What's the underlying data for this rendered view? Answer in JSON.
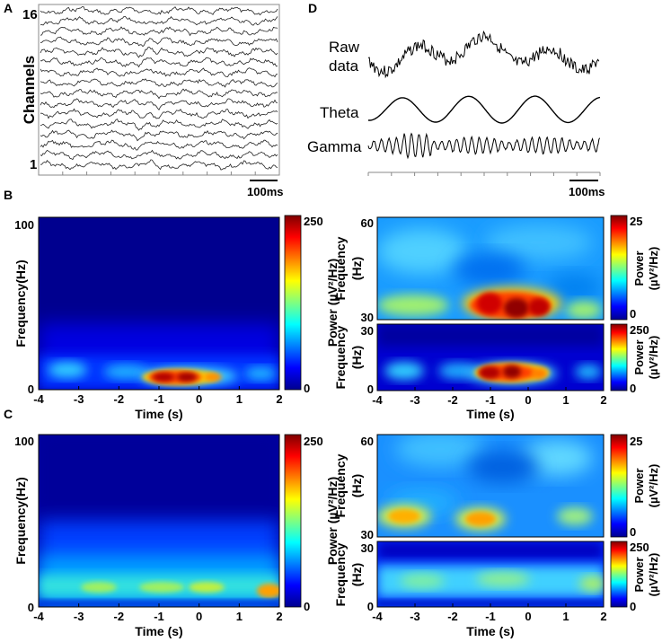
{
  "panels": {
    "A": "A",
    "B": "B",
    "C": "C",
    "D": "D"
  },
  "panelA": {
    "ylabel": "Channels",
    "channel_top": "16",
    "channel_bottom": "1",
    "channel_count": 16,
    "scalebar": "100ms"
  },
  "panelD": {
    "traces": [
      "Raw data",
      "Theta",
      "Gamma"
    ],
    "raw_line1": "Raw",
    "raw_line2": "data",
    "scalebar": "100ms"
  },
  "spectrograms": {
    "time_label": "Time (s)",
    "time_ticks": [
      "-4",
      "-3",
      "-2",
      "-1",
      "0",
      "1",
      "2"
    ],
    "freq_label_full": "Frequency(Hz)",
    "freq_label_line1": "Frequency",
    "freq_label_line2": "(Hz)",
    "power_label": "Power (µV²/Hz)",
    "power_line1": "Power",
    "power_line2": "(µV²/Hz)",
    "full_freq_ticks": [
      "0",
      "100"
    ],
    "high_freq_ticks": [
      "30",
      "60"
    ],
    "low_freq_ticks": [
      "0",
      "30"
    ],
    "cbar_full_ticks": [
      "0",
      "250"
    ],
    "cbar_high_ticks": [
      "0",
      "25"
    ],
    "cbar_low_ticks": [
      "0",
      "250"
    ]
  },
  "colors": {
    "jet_low": "#00008f",
    "jet_mid": "#00ffff",
    "jet_high": "#7f0000"
  }
}
